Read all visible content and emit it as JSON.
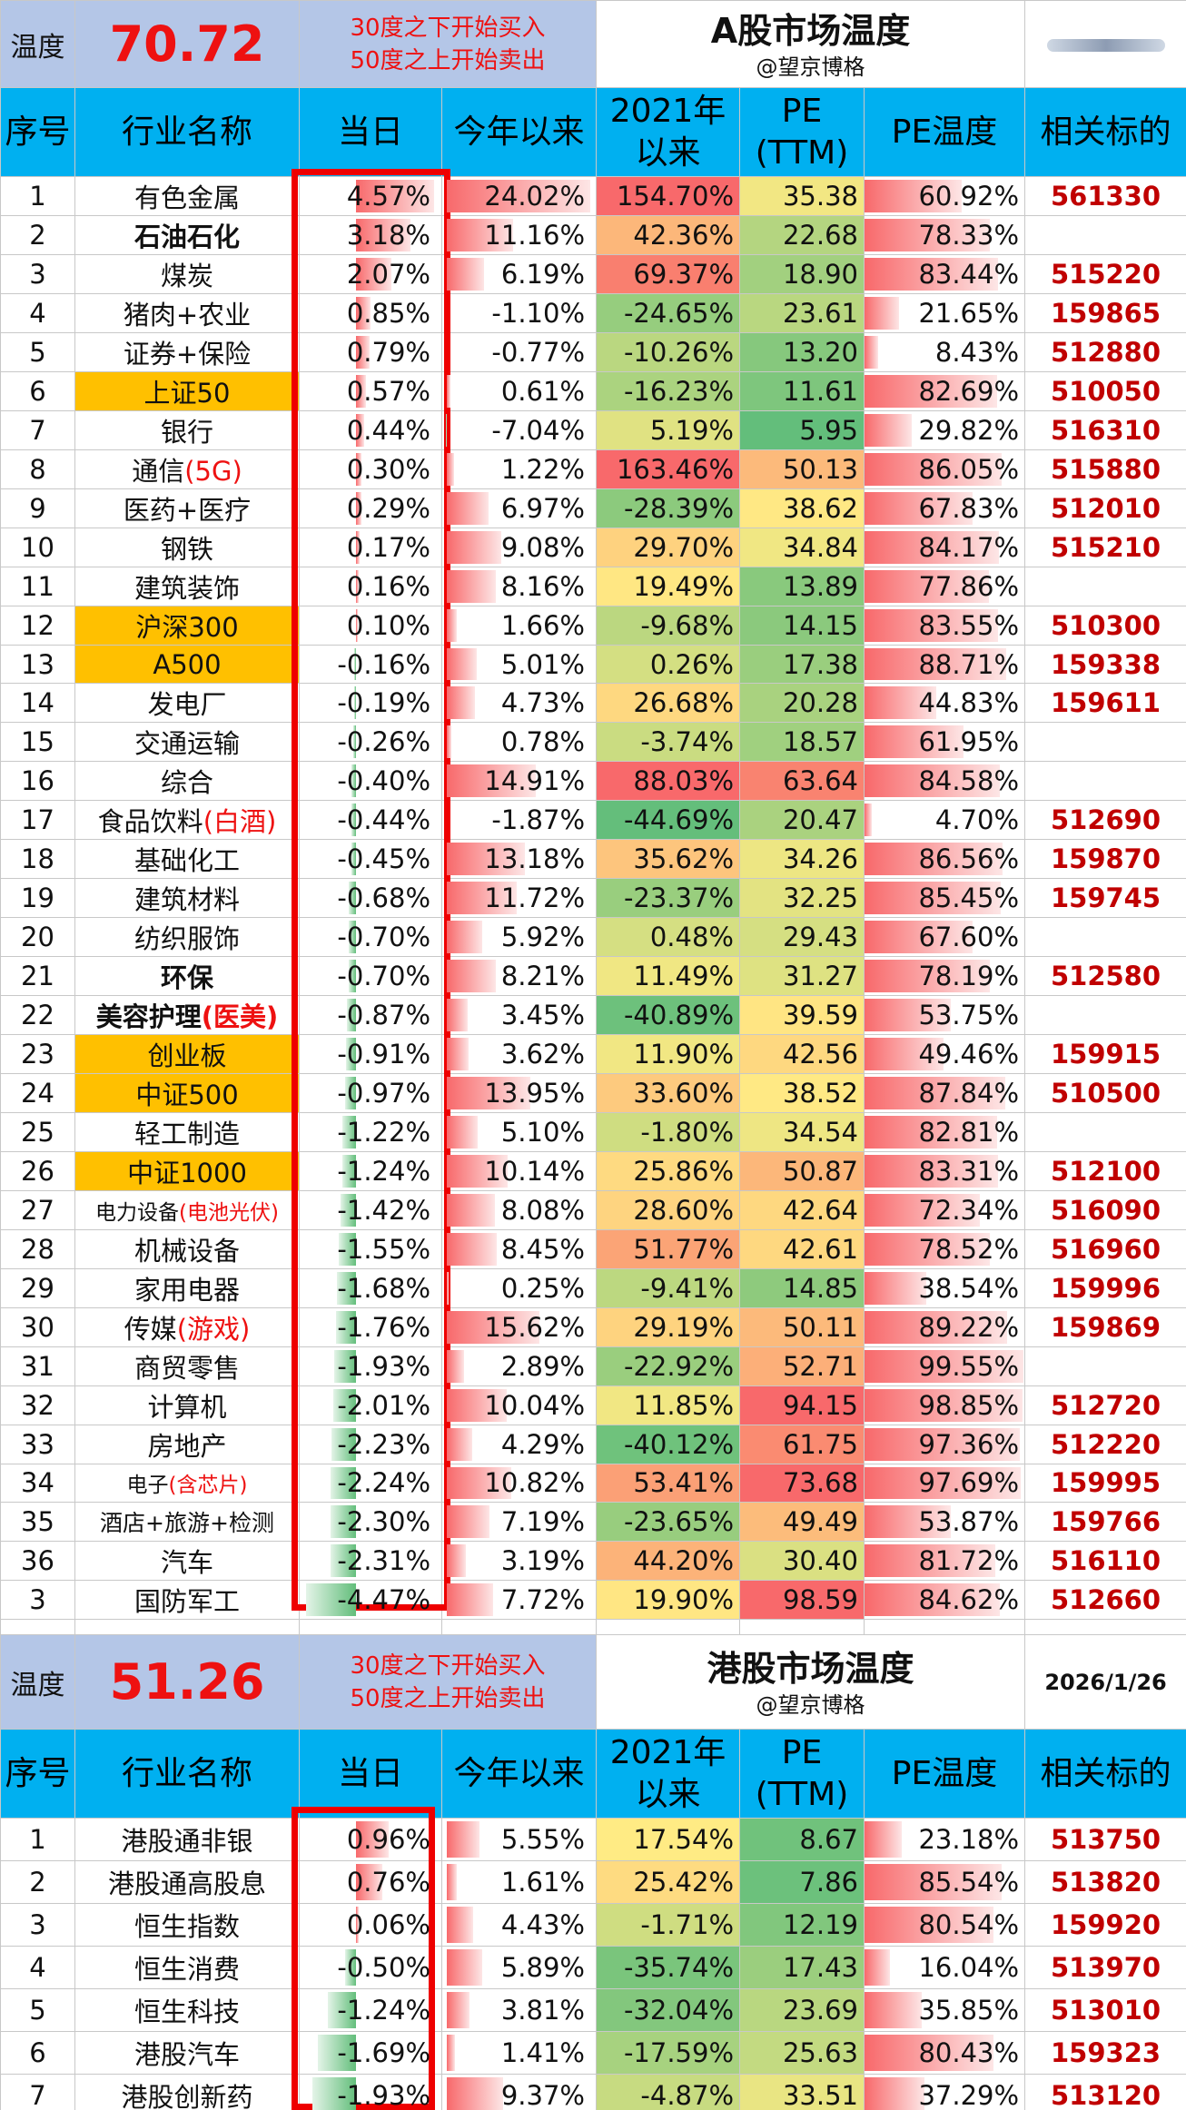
{
  "a_share": {
    "temp_label": "温度",
    "temp_value": "70.72",
    "rule_line1": "30度之下开始买入",
    "rule_line2": "50度之上开始卖出",
    "title": "A股市场温度",
    "author": "@望京博格",
    "corner_text": "",
    "headers": [
      "序号",
      "行业名称",
      "当日",
      "今年以来",
      "2021年以来",
      "PE\n(TTM)",
      "PE温度",
      "相关标的"
    ],
    "rows": [
      {
        "idx": "1",
        "name": "有色金属",
        "day": "4.57%",
        "ytd": "24.02%",
        "y21": "154.70%",
        "pe": "35.38",
        "pet": "60.92%",
        "code": "561330"
      },
      {
        "idx": "2",
        "name": "石油石化",
        "day": "3.18%",
        "ytd": "11.16%",
        "y21": "42.36%",
        "pe": "22.68",
        "pet": "78.33%",
        "code": ""
      },
      {
        "idx": "3",
        "name": "煤炭",
        "day": "2.07%",
        "ytd": "6.19%",
        "y21": "69.37%",
        "pe": "18.90",
        "pet": "83.44%",
        "code": "515220"
      },
      {
        "idx": "4",
        "name": "猪肉+农业",
        "day": "0.85%",
        "ytd": "-1.10%",
        "y21": "-24.65%",
        "pe": "23.61",
        "pet": "21.65%",
        "code": "159865"
      },
      {
        "idx": "5",
        "name": "证券+保险",
        "day": "0.79%",
        "ytd": "-0.77%",
        "y21": "-10.26%",
        "pe": "13.20",
        "pet": "8.43%",
        "code": "512880"
      },
      {
        "idx": "6",
        "name": "上证50",
        "day": "0.57%",
        "ytd": "0.61%",
        "y21": "-16.23%",
        "pe": "11.61",
        "pet": "82.69%",
        "code": "510050"
      },
      {
        "idx": "7",
        "name": "银行",
        "day": "0.44%",
        "ytd": "-7.04%",
        "y21": "5.19%",
        "pe": "5.95",
        "pet": "29.82%",
        "code": "516310"
      },
      {
        "idx": "8",
        "name": "通信",
        "name_suffix": "(5G)",
        "day": "0.30%",
        "ytd": "1.22%",
        "y21": "163.46%",
        "pe": "50.13",
        "pet": "86.05%",
        "code": "515880"
      },
      {
        "idx": "9",
        "name": "医药+医疗",
        "day": "0.29%",
        "ytd": "6.97%",
        "y21": "-28.39%",
        "pe": "38.62",
        "pet": "67.83%",
        "code": "512010"
      },
      {
        "idx": "10",
        "name": "钢铁",
        "day": "0.17%",
        "ytd": "9.08%",
        "y21": "29.70%",
        "pe": "34.84",
        "pet": "84.17%",
        "code": "515210"
      },
      {
        "idx": "11",
        "name": "建筑装饰",
        "day": "0.16%",
        "ytd": "8.16%",
        "y21": "19.49%",
        "pe": "13.89",
        "pet": "77.86%",
        "code": ""
      },
      {
        "idx": "12",
        "name": "沪深300",
        "day": "0.10%",
        "ytd": "1.66%",
        "y21": "-9.68%",
        "pe": "14.15",
        "pet": "83.55%",
        "code": "510300"
      },
      {
        "idx": "13",
        "name": "A500",
        "day": "-0.16%",
        "ytd": "5.01%",
        "y21": "0.26%",
        "pe": "17.38",
        "pet": "88.71%",
        "code": "159338"
      },
      {
        "idx": "14",
        "name": "发电厂",
        "day": "-0.19%",
        "ytd": "4.73%",
        "y21": "26.68%",
        "pe": "20.28",
        "pet": "44.83%",
        "code": "159611"
      },
      {
        "idx": "15",
        "name": "交通运输",
        "day": "-0.26%",
        "ytd": "0.78%",
        "y21": "-3.74%",
        "pe": "18.57",
        "pet": "61.95%",
        "code": ""
      },
      {
        "idx": "16",
        "name": "综合",
        "day": "-0.40%",
        "ytd": "14.91%",
        "y21": "88.03%",
        "pe": "63.64",
        "pet": "84.58%",
        "code": ""
      },
      {
        "idx": "17",
        "name": "食品饮料",
        "name_suffix": "(白酒)",
        "day": "-0.44%",
        "ytd": "-1.87%",
        "y21": "-44.69%",
        "pe": "20.47",
        "pet": "4.70%",
        "code": "512690"
      },
      {
        "idx": "18",
        "name": "基础化工",
        "day": "-0.45%",
        "ytd": "13.18%",
        "y21": "35.62%",
        "pe": "34.26",
        "pet": "86.56%",
        "code": "159870"
      },
      {
        "idx": "19",
        "name": "建筑材料",
        "day": "-0.68%",
        "ytd": "11.72%",
        "y21": "-23.37%",
        "pe": "32.25",
        "pet": "85.45%",
        "code": "159745"
      },
      {
        "idx": "20",
        "name": "纺织服饰",
        "day": "-0.70%",
        "ytd": "5.92%",
        "y21": "0.48%",
        "pe": "29.43",
        "pet": "67.60%",
        "code": ""
      },
      {
        "idx": "21",
        "name": "环保",
        "day": "-0.70%",
        "ytd": "8.21%",
        "y21": "11.49%",
        "pe": "31.27",
        "pet": "78.19%",
        "code": "512580"
      },
      {
        "idx": "22",
        "name": "美容护理",
        "name_suffix": "(医美)",
        "day": "-0.87%",
        "ytd": "3.45%",
        "y21": "-40.89%",
        "pe": "39.59",
        "pet": "53.75%",
        "code": ""
      },
      {
        "idx": "23",
        "name": "创业板",
        "day": "-0.91%",
        "ytd": "3.62%",
        "y21": "11.90%",
        "pe": "42.56",
        "pet": "49.46%",
        "code": "159915"
      },
      {
        "idx": "24",
        "name": "中证500",
        "day": "-0.97%",
        "ytd": "13.95%",
        "y21": "33.60%",
        "pe": "38.52",
        "pet": "87.84%",
        "code": "510500"
      },
      {
        "idx": "25",
        "name": "轻工制造",
        "day": "-1.22%",
        "ytd": "5.10%",
        "y21": "-1.80%",
        "pe": "34.54",
        "pet": "82.81%",
        "code": ""
      },
      {
        "idx": "26",
        "name": "中证1000",
        "day": "-1.24%",
        "ytd": "10.14%",
        "y21": "25.86%",
        "pe": "50.87",
        "pet": "83.31%",
        "code": "512100"
      },
      {
        "idx": "27",
        "name": "电力设备",
        "name_suffix": "(电池光伏)",
        "day": "-1.42%",
        "ytd": "8.08%",
        "y21": "28.60%",
        "pe": "42.64",
        "pet": "72.34%",
        "code": "516090"
      },
      {
        "idx": "28",
        "name": "机械设备",
        "day": "-1.55%",
        "ytd": "8.45%",
        "y21": "51.77%",
        "pe": "42.61",
        "pet": "78.52%",
        "code": "516960"
      },
      {
        "idx": "29",
        "name": "家用电器",
        "day": "-1.68%",
        "ytd": "0.25%",
        "y21": "-9.41%",
        "pe": "14.85",
        "pet": "38.54%",
        "code": "159996"
      },
      {
        "idx": "30",
        "name": "传媒",
        "name_suffix": "(游戏)",
        "day": "-1.76%",
        "ytd": "15.62%",
        "y21": "29.19%",
        "pe": "50.11",
        "pet": "89.22%",
        "code": "159869"
      },
      {
        "idx": "31",
        "name": "商贸零售",
        "day": "-1.93%",
        "ytd": "2.89%",
        "y21": "-22.92%",
        "pe": "52.71",
        "pet": "99.55%",
        "code": ""
      },
      {
        "idx": "32",
        "name": "计算机",
        "day": "-2.01%",
        "ytd": "10.04%",
        "y21": "11.85%",
        "pe": "94.15",
        "pet": "98.85%",
        "code": "512720"
      },
      {
        "idx": "33",
        "name": "房地产",
        "day": "-2.23%",
        "ytd": "4.29%",
        "y21": "-40.12%",
        "pe": "61.75",
        "pet": "97.36%",
        "code": "512220"
      },
      {
        "idx": "34",
        "name": "电子",
        "name_suffix": "(含芯片)",
        "day": "-2.24%",
        "ytd": "10.82%",
        "y21": "53.41%",
        "pe": "73.68",
        "pet": "97.69%",
        "code": "159995"
      },
      {
        "idx": "35",
        "name": "酒店+旅游+检测",
        "day": "-2.30%",
        "ytd": "7.19%",
        "y21": "-23.65%",
        "pe": "49.49",
        "pet": "53.87%",
        "code": "159766"
      },
      {
        "idx": "36",
        "name": "汽车",
        "day": "-2.31%",
        "ytd": "3.19%",
        "y21": "44.20%",
        "pe": "30.40",
        "pet": "81.72%",
        "code": "516110"
      },
      {
        "idx": "3",
        "name": "国防军工",
        "day": "-4.47%",
        "ytd": "7.72%",
        "y21": "19.90%",
        "pe": "98.59",
        "pet": "84.62%",
        "code": "512660"
      }
    ]
  },
  "hk_share": {
    "temp_label": "温度",
    "temp_value": "51.26",
    "rule_line1": "30度之下开始买入",
    "rule_line2": "50度之上开始卖出",
    "title": "港股市场温度",
    "author": "@望京博格",
    "date": "2026/1/26",
    "headers": [
      "序号",
      "行业名称",
      "当日",
      "今年以来",
      "2021年以来",
      "PE\n(TTM)",
      "PE温度",
      "相关标的"
    ],
    "rows": [
      {
        "idx": "1",
        "name": "港股通非银",
        "day": "0.96%",
        "ytd": "5.55%",
        "y21": "17.54%",
        "pe": "8.67",
        "pet": "23.18%",
        "code": "513750"
      },
      {
        "idx": "2",
        "name": "港股通高股息",
        "day": "0.76%",
        "ytd": "1.61%",
        "y21": "25.42%",
        "pe": "7.86",
        "pet": "85.54%",
        "code": "513820"
      },
      {
        "idx": "3",
        "name": "恒生指数",
        "day": "0.06%",
        "ytd": "4.43%",
        "y21": "-1.71%",
        "pe": "12.19",
        "pet": "80.54%",
        "code": "159920"
      },
      {
        "idx": "4",
        "name": "恒生消费",
        "day": "-0.50%",
        "ytd": "5.89%",
        "y21": "-35.74%",
        "pe": "17.43",
        "pet": "16.04%",
        "code": "513970"
      },
      {
        "idx": "5",
        "name": "恒生科技",
        "day": "-1.24%",
        "ytd": "3.81%",
        "y21": "-32.04%",
        "pe": "23.69",
        "pet": "35.85%",
        "code": "513010"
      },
      {
        "idx": "6",
        "name": "港股汽车",
        "day": "-1.69%",
        "ytd": "1.41%",
        "y21": "-17.59%",
        "pe": "25.63",
        "pet": "80.43%",
        "code": "159323"
      },
      {
        "idx": "7",
        "name": "港股创新药",
        "day": "-1.93%",
        "ytd": "9.37%",
        "y21": "-4.87%",
        "pe": "33.51",
        "pet": "37.29%",
        "code": "513120"
      }
    ]
  },
  "colors": {
    "header_blue": "#00b0f0",
    "temp_bg": "#b4c6e7",
    "highlight": "#ffc000",
    "accent_red": "#ee1111",
    "code_red": "#c00000"
  }
}
